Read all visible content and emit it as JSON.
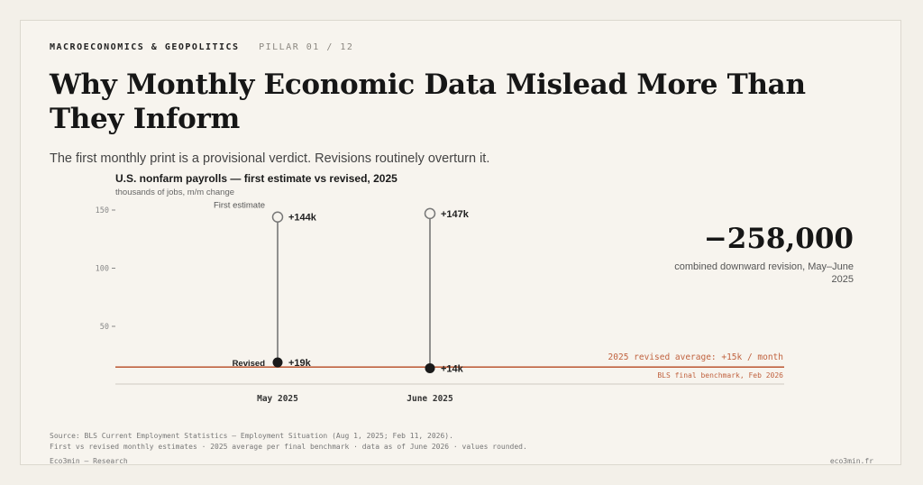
{
  "header": {
    "category": "MACROECONOMICS & GEOPOLITICS",
    "pillar": "PILLAR 01 / 12"
  },
  "headline": "Why Monthly Economic Data Mislead More Than They Inform",
  "subtitle": "The first monthly print is a provisional verdict. Revisions routinely overturn it.",
  "callout": {
    "value": "−258,000",
    "caption": "combined downward revision, May–June 2025"
  },
  "footer": {
    "source": "Source: BLS Current Employment Statistics — Employment Situation (Aug 1, 2025; Feb 11, 2026).",
    "notes": "First vs revised monthly estimates · 2025 average per final benchmark · data as of June 2026 · values rounded.",
    "brand": "Eco3min — Research",
    "site": "eco3min.fr"
  },
  "colors": {
    "accent": "#c0623f",
    "dark": "#1a1a1a",
    "stem": "#777777"
  },
  "chart_data": {
    "type": "dumbbell",
    "title": "U.S. nonfarm payrolls — first estimate vs revised, 2025",
    "ylabel": "thousands of jobs, m/m change",
    "ylim": [
      0,
      150
    ],
    "yticks": [
      50,
      100,
      150
    ],
    "categories": [
      "May 2025",
      "June 2025"
    ],
    "series": [
      {
        "name": "First estimate",
        "values": [
          144,
          147
        ],
        "labels": [
          "+144k",
          "+147k"
        ]
      },
      {
        "name": "Revised",
        "values": [
          19,
          14
        ],
        "labels": [
          "+19k",
          "+14k"
        ]
      }
    ],
    "reference_line": {
      "value": 15,
      "label": "2025 revised average: +15k / month",
      "sublabel": "BLS final benchmark, Feb 2026"
    }
  }
}
